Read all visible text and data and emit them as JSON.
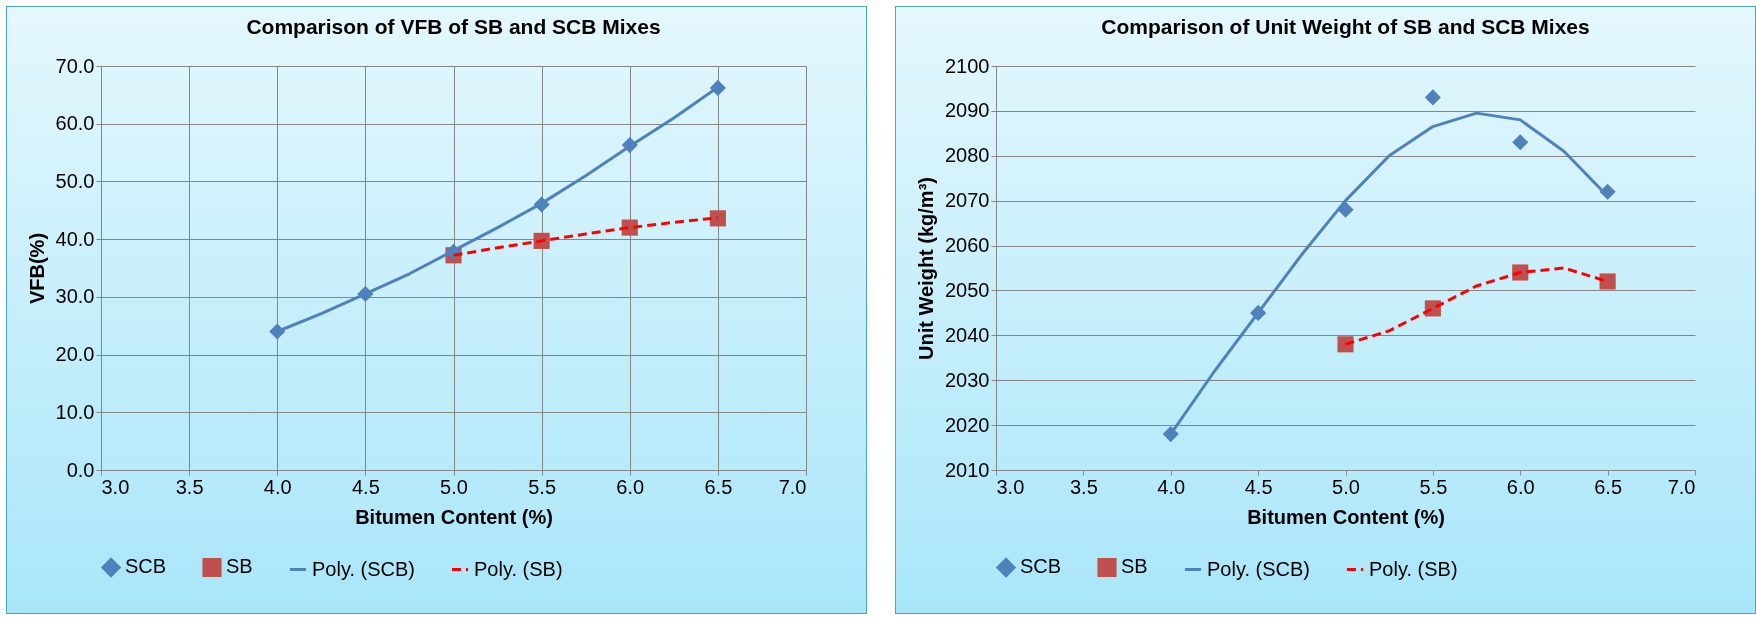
{
  "chart_data": [
    {
      "type": "scatter",
      "title": "Comparison of VFB of SB and SCB Mixes",
      "xlabel": "Bitumen Content (%)",
      "ylabel": "VFB(%)",
      "xlim": [
        3,
        7
      ],
      "ylim": [
        0,
        70
      ],
      "xticks": [
        {
          "value": 3,
          "label": "3.0"
        },
        {
          "value": 3.5,
          "label": "3.5"
        },
        {
          "value": 4,
          "label": "4.0"
        },
        {
          "value": 4.5,
          "label": "4.5"
        },
        {
          "value": 5,
          "label": "5.0"
        },
        {
          "value": 5.5,
          "label": "5.5"
        },
        {
          "value": 6,
          "label": "6.0"
        },
        {
          "value": 6.5,
          "label": "6.5"
        },
        {
          "value": 7,
          "label": "7.0"
        }
      ],
      "yticks": [
        {
          "value": 0,
          "label": "0.0"
        },
        {
          "value": 10,
          "label": "10.0"
        },
        {
          "value": 20,
          "label": "20.0"
        },
        {
          "value": 30,
          "label": "30.0"
        },
        {
          "value": 40,
          "label": "40.0"
        },
        {
          "value": 50,
          "label": "50.0"
        },
        {
          "value": 60,
          "label": "60.0"
        },
        {
          "value": 70,
          "label": "70.0"
        }
      ],
      "grid": true,
      "legend": "bottom",
      "series": [
        {
          "name": "SCB",
          "type": "scatter",
          "marker": "diamond",
          "color": "#4f81bd",
          "x": [
            4.0,
            4.5,
            5.0,
            5.5,
            6.0,
            6.5
          ],
          "values": [
            24.0,
            30.5,
            37.8,
            46.0,
            56.3,
            66.2
          ]
        },
        {
          "name": "SB",
          "type": "scatter",
          "marker": "square",
          "color": "#c0504d",
          "x": [
            5.0,
            5.5,
            6.0,
            6.5
          ],
          "values": [
            37.2,
            39.7,
            42.0,
            43.6
          ]
        },
        {
          "name": "Poly. (SCB)",
          "type": "line",
          "marker": "none",
          "line_style": "solid",
          "color": "#4f81bd",
          "x": [
            4.0,
            4.25,
            4.5,
            4.75,
            5.0,
            5.25,
            5.5,
            5.75,
            6.0,
            6.25,
            6.5
          ],
          "values": [
            24.0,
            27.1,
            30.5,
            34.0,
            38.0,
            42.0,
            46.2,
            51.0,
            56.1,
            61.0,
            66.3
          ]
        },
        {
          "name": "Poly. (SB)",
          "type": "line",
          "marker": "none",
          "line_style": "dashed",
          "color": "#ff0000",
          "x": [
            5.0,
            5.25,
            5.5,
            5.75,
            6.0,
            6.25,
            6.5
          ],
          "values": [
            37.2,
            38.5,
            39.7,
            40.9,
            42.0,
            42.9,
            43.7
          ]
        }
      ]
    },
    {
      "type": "scatter",
      "title": "Comparison of Unit Weight of SB and SCB Mixes",
      "xlabel": "Bitumen Content (%)",
      "ylabel": "Unit Weight (kg/m³)",
      "xlim": [
        3,
        7
      ],
      "ylim": [
        2010,
        2100
      ],
      "xticks": [
        {
          "value": 3,
          "label": "3.0"
        },
        {
          "value": 3.5,
          "label": "3.5"
        },
        {
          "value": 4,
          "label": "4.0"
        },
        {
          "value": 4.5,
          "label": "4.5"
        },
        {
          "value": 5,
          "label": "5.0"
        },
        {
          "value": 5.5,
          "label": "5.5"
        },
        {
          "value": 6,
          "label": "6.0"
        },
        {
          "value": 6.5,
          "label": "6.5"
        },
        {
          "value": 7,
          "label": "7.0"
        }
      ],
      "yticks": [
        2010,
        2020,
        2030,
        2040,
        2050,
        2060,
        2070,
        2080,
        2090,
        2100
      ],
      "grid": "y",
      "legend": "bottom",
      "series": [
        {
          "name": "SCB",
          "type": "scatter",
          "marker": "diamond",
          "color": "#4f81bd",
          "x": [
            4.0,
            4.5,
            5.0,
            5.5,
            6.0,
            6.5
          ],
          "values": [
            2018,
            2045,
            2068,
            2093,
            2083,
            2072
          ]
        },
        {
          "name": "SB",
          "type": "scatter",
          "marker": "square",
          "color": "#c0504d",
          "x": [
            5.0,
            5.5,
            6.0,
            6.5
          ],
          "values": [
            2038,
            2046,
            2054,
            2052
          ]
        },
        {
          "name": "Poly. (SCB)",
          "type": "line",
          "marker": "none",
          "line_style": "solid",
          "color": "#4f81bd",
          "x": [
            4.0,
            4.25,
            4.5,
            4.75,
            5.0,
            5.25,
            5.5,
            5.75,
            6.0,
            6.25,
            6.5
          ],
          "values": [
            2018,
            2032,
            2045,
            2058,
            2070,
            2080,
            2086.5,
            2089.5,
            2088,
            2081,
            2071
          ]
        },
        {
          "name": "Poly. (SB)",
          "type": "line",
          "marker": "none",
          "line_style": "dashed",
          "color": "#ff0000",
          "x": [
            5.0,
            5.25,
            5.5,
            5.75,
            6.0,
            6.25,
            6.5
          ],
          "values": [
            2038,
            2041,
            2046,
            2051,
            2054,
            2055,
            2052
          ]
        }
      ]
    }
  ]
}
